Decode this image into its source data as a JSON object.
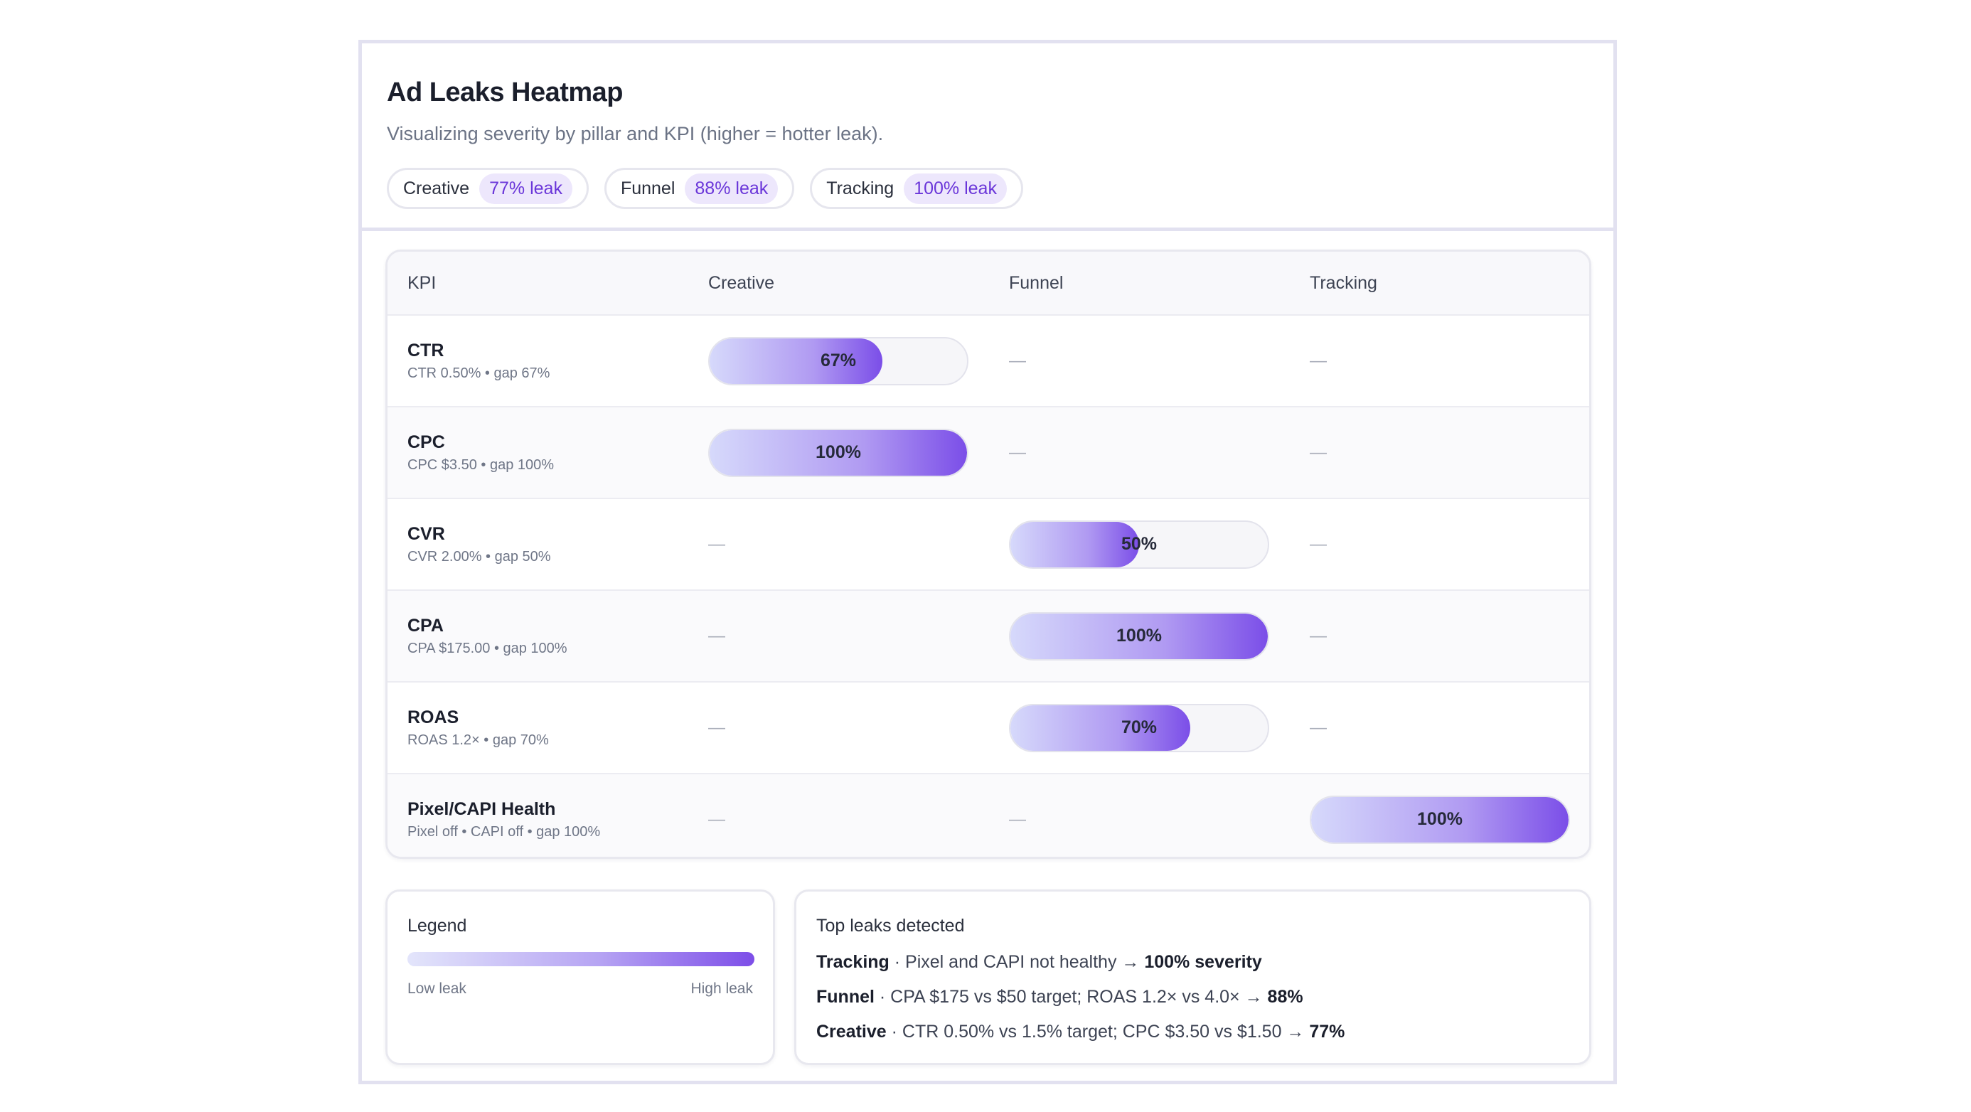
{
  "header": {
    "title": "Ad Leaks Heatmap",
    "subtitle": "Visualizing severity by pillar and KPI (higher = hotter leak).",
    "pills": [
      {
        "name": "Creative",
        "badge": "77% leak"
      },
      {
        "name": "Funnel",
        "badge": "88% leak"
      },
      {
        "name": "Tracking",
        "badge": "100% leak"
      }
    ]
  },
  "table": {
    "columns": [
      "KPI",
      "Creative",
      "Funnel",
      "Tracking"
    ],
    "dash": "—",
    "rows": [
      {
        "name": "CTR",
        "sub": "CTR 0.50% • gap 67%",
        "cells": [
          {
            "label": "67%",
            "value": 0.67
          },
          null,
          null
        ]
      },
      {
        "name": "CPC",
        "sub": "CPC $3.50 • gap 100%",
        "cells": [
          {
            "label": "100%",
            "value": 1.0
          },
          null,
          null
        ]
      },
      {
        "name": "CVR",
        "sub": "CVR 2.00% • gap 50%",
        "cells": [
          null,
          {
            "label": "50%",
            "value": 0.5
          },
          null
        ]
      },
      {
        "name": "CPA",
        "sub": "CPA $175.00 • gap 100%",
        "cells": [
          null,
          {
            "label": "100%",
            "value": 1.0
          },
          null
        ]
      },
      {
        "name": "ROAS",
        "sub": "ROAS 1.2× • gap 70%",
        "cells": [
          null,
          {
            "label": "70%",
            "value": 0.7
          },
          null
        ]
      },
      {
        "name": "Pixel/CAPI Health",
        "sub": "Pixel off • CAPI off • gap 100%",
        "cells": [
          null,
          null,
          {
            "label": "100%",
            "value": 1.0
          }
        ]
      }
    ]
  },
  "legend": {
    "title": "Legend",
    "low": "Low leak",
    "high": "High leak"
  },
  "leaks": {
    "title": "Top leaks detected",
    "items": [
      {
        "pillar": "Tracking",
        "detail": " · Pixel and CAPI not healthy → ",
        "severity": "100% severity"
      },
      {
        "pillar": "Funnel",
        "detail": " · CPA $175 vs $50 target; ROAS 1.2× vs 4.0× → ",
        "severity": "88%"
      },
      {
        "pillar": "Creative",
        "detail": " · CTR 0.50% vs 1.5% target; CPC $3.50 vs $1.50 → ",
        "severity": "77%"
      }
    ]
  },
  "colors": {
    "accent": "#7b4ee8",
    "badge_bg": "#ede7fc",
    "badge_text": "#6a36d9"
  }
}
